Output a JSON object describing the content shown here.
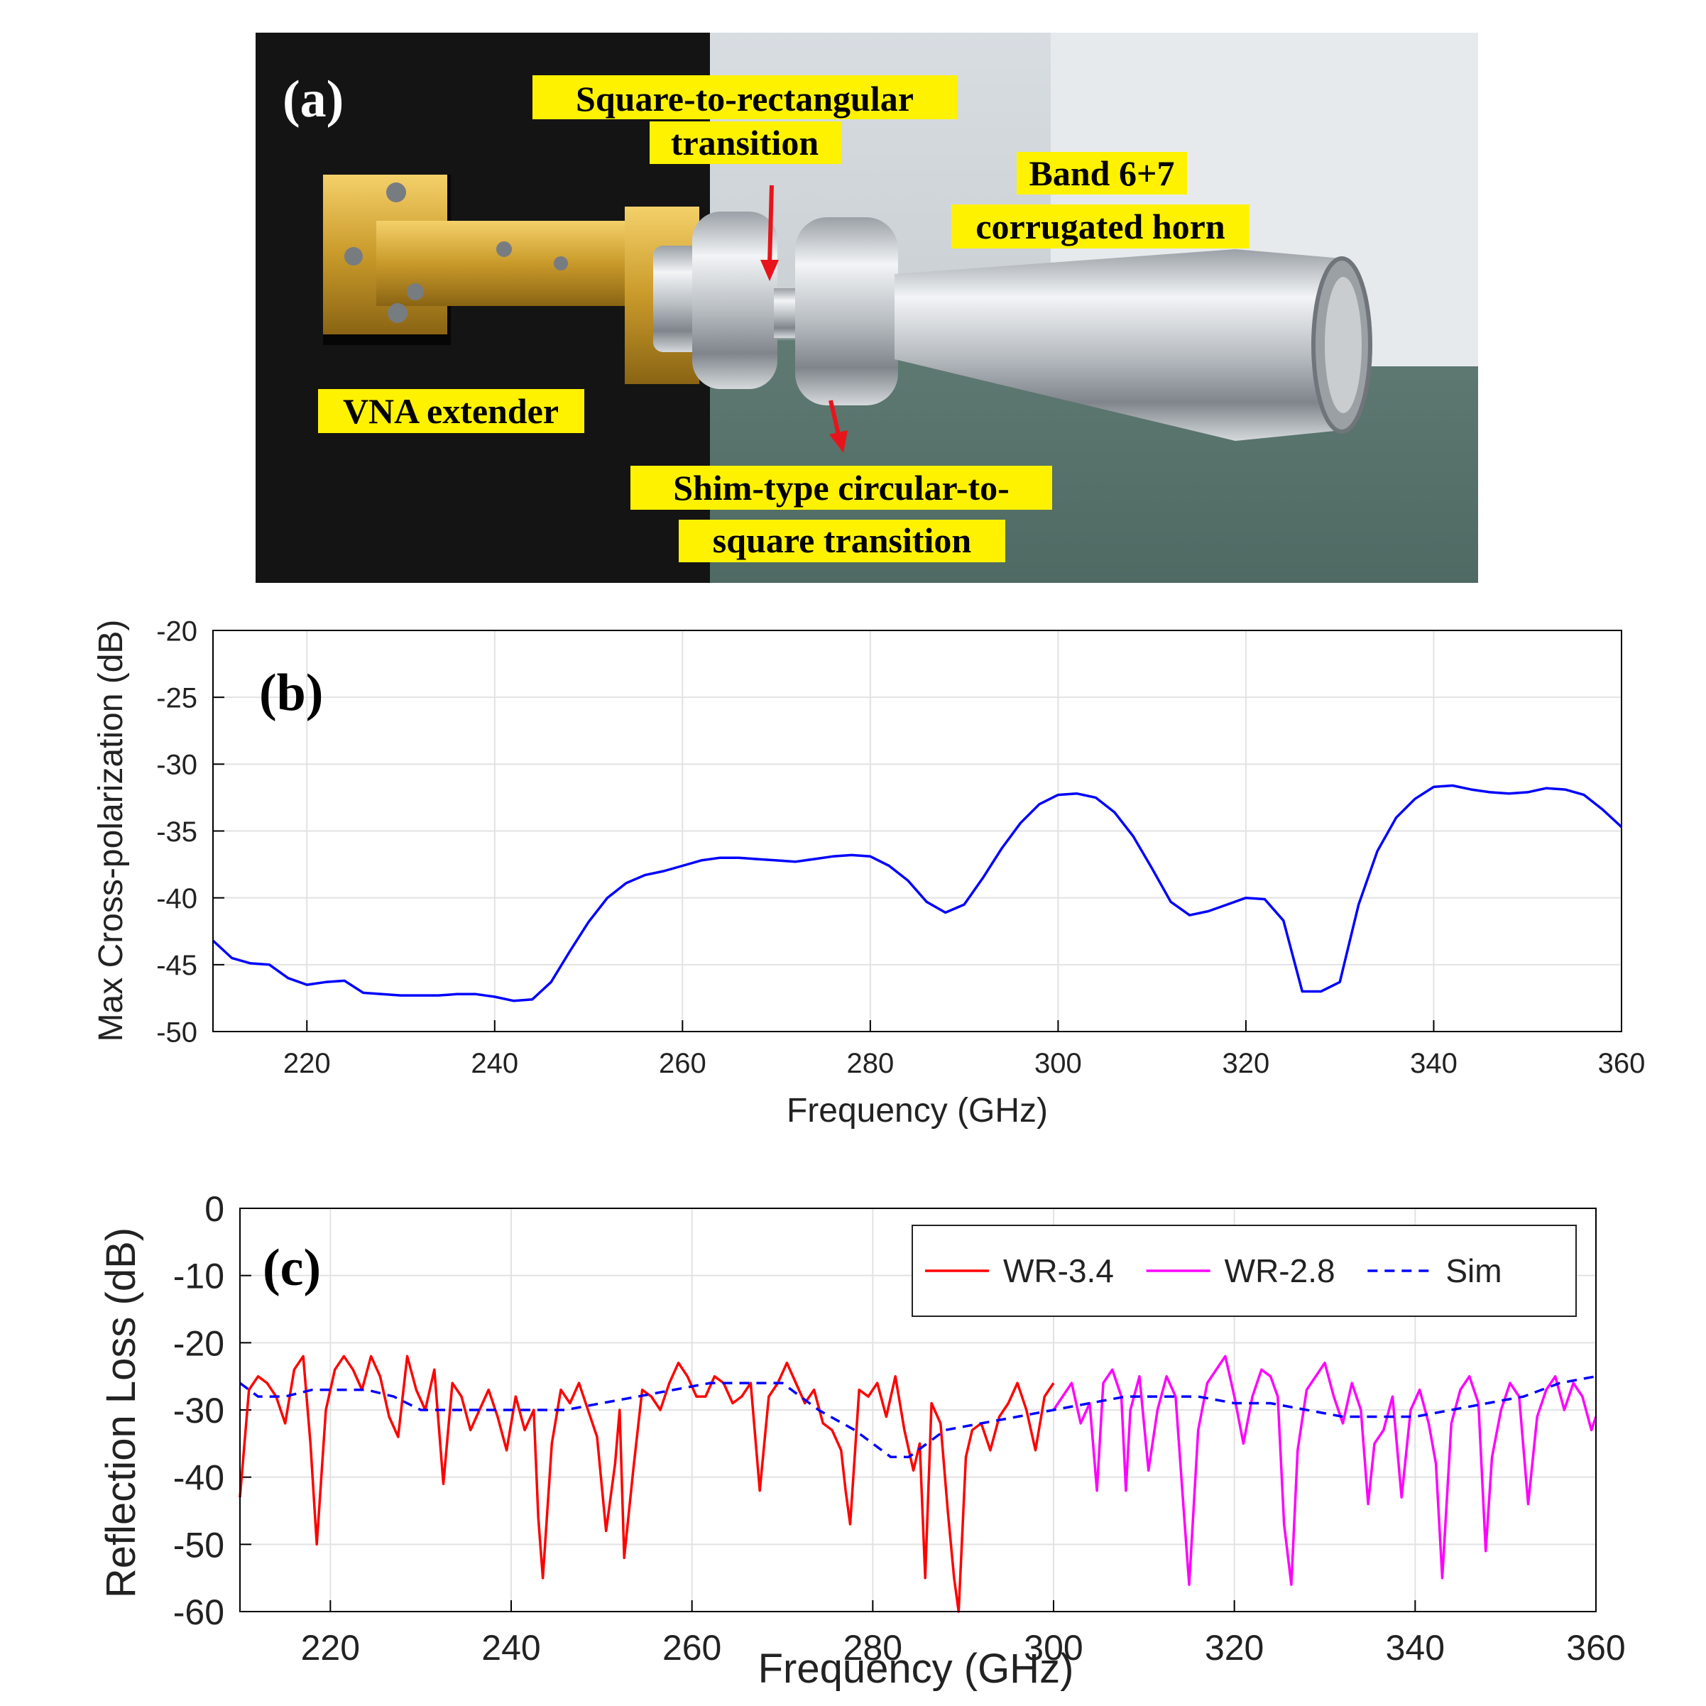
{
  "photo": {
    "panel_label": "(a)",
    "labels": {
      "square_to_rect": [
        "Square-to-rectangular",
        "transition"
      ],
      "horn": [
        "Band 6+7",
        "corrugated horn"
      ],
      "vna": [
        "VNA extender"
      ],
      "shim": [
        "Shim-type circular-to-",
        "square transition"
      ]
    },
    "colors": {
      "highlight": "#fff200",
      "arrow": "#e8141b"
    }
  },
  "chart_data": [
    {
      "panel_label": "(b)",
      "type": "line",
      "xlabel": "Frequency (GHz)",
      "ylabel": "Max Cross-polarization (dB)",
      "xlim": [
        210,
        360
      ],
      "ylim": [
        -50,
        -20
      ],
      "xticks": [
        220,
        240,
        260,
        280,
        300,
        320,
        340,
        360
      ],
      "yticks": [
        -20,
        -25,
        -30,
        -35,
        -40,
        -45,
        -50
      ],
      "grid": true,
      "series": [
        {
          "color": "#0000ff",
          "style": "solid",
          "x": [
            210,
            212,
            214,
            216,
            218,
            220,
            222,
            224,
            226,
            228,
            230,
            232,
            234,
            236,
            238,
            240,
            242,
            244,
            246,
            248,
            250,
            252,
            254,
            256,
            258,
            260,
            262,
            264,
            266,
            268,
            270,
            272,
            274,
            276,
            278,
            280,
            282,
            284,
            286,
            288,
            290,
            292,
            294,
            296,
            298,
            300,
            302,
            304,
            306,
            308,
            310,
            312,
            314,
            316,
            318,
            320,
            322,
            324,
            326,
            328,
            330,
            332,
            334,
            336,
            338,
            340,
            342,
            344,
            346,
            348,
            350,
            352,
            354,
            356,
            358,
            360
          ],
          "y": [
            -43.2,
            -44.5,
            -44.9,
            -45.0,
            -46.0,
            -46.5,
            -46.3,
            -46.2,
            -47.1,
            -47.2,
            -47.3,
            -47.3,
            -47.3,
            -47.2,
            -47.2,
            -47.4,
            -47.7,
            -47.6,
            -46.3,
            -44.0,
            -41.8,
            -40.0,
            -38.9,
            -38.3,
            -38.0,
            -37.6,
            -37.2,
            -37.0,
            -37.0,
            -37.1,
            -37.2,
            -37.3,
            -37.1,
            -36.9,
            -36.8,
            -36.9,
            -37.6,
            -38.7,
            -40.3,
            -41.1,
            -40.5,
            -38.5,
            -36.3,
            -34.4,
            -33.0,
            -32.3,
            -32.2,
            -32.5,
            -33.6,
            -35.4,
            -37.8,
            -40.3,
            -41.3,
            -41.0,
            -40.5,
            -40.0,
            -40.1,
            -41.7,
            -47.0,
            -47.0,
            -46.3,
            -40.5,
            -36.5,
            -34.0,
            -32.6,
            -31.7,
            -31.6,
            -31.9,
            -32.1,
            -32.2,
            -32.1,
            -31.8,
            -31.9,
            -32.3,
            -33.4,
            -34.7
          ]
        }
      ]
    },
    {
      "panel_label": "(c)",
      "type": "line",
      "xlabel": "Frequency (GHz)",
      "ylabel": "Reflection Loss (dB)",
      "xlim": [
        210,
        360
      ],
      "ylim": [
        -60,
        0
      ],
      "xticks": [
        220,
        240,
        260,
        280,
        300,
        320,
        340,
        360
      ],
      "yticks": [
        0,
        -10,
        -20,
        -30,
        -40,
        -50,
        -60
      ],
      "grid": true,
      "legend_position": "top-right",
      "series": [
        {
          "name": "WR-3.4",
          "color": "#ff0000",
          "style": "solid",
          "x": [
            210,
            211,
            212,
            213,
            214,
            215,
            216,
            217,
            217.8,
            218.5,
            219.5,
            220.5,
            221.5,
            222.5,
            223.5,
            224.5,
            225.5,
            226.5,
            227.5,
            228.5,
            229.5,
            230.5,
            231.5,
            232.5,
            233.5,
            234.5,
            235.5,
            236.5,
            237.5,
            238.5,
            239.5,
            240.5,
            241.5,
            242.5,
            243,
            243.5,
            244.5,
            245.5,
            246.5,
            247.5,
            248.5,
            249.5,
            250.5,
            251.5,
            252,
            252.5,
            253.5,
            254.5,
            255.5,
            256.5,
            257.5,
            258.5,
            259.5,
            260.5,
            261.5,
            262.5,
            263.5,
            264.5,
            265.5,
            266.5,
            267.5,
            268.5,
            269.5,
            270.5,
            271.5,
            272.5,
            273.5,
            274.5,
            275.5,
            276.5,
            277,
            277.5,
            278.5,
            279.5,
            280.5,
            281.5,
            282.5,
            283.5,
            284.5,
            285.2,
            285.8,
            286.5,
            287.5,
            288.3,
            289,
            289.5,
            290.3,
            291,
            292,
            293,
            294,
            295,
            296,
            297,
            298,
            299,
            300
          ],
          "y": [
            -43,
            -27,
            -25,
            -26,
            -28,
            -32,
            -24,
            -22,
            -35,
            -50,
            -30,
            -24,
            -22,
            -24,
            -27,
            -22,
            -25,
            -31,
            -34,
            -22,
            -27,
            -30,
            -24,
            -41,
            -26,
            -28,
            -33,
            -30,
            -27,
            -31,
            -36,
            -28,
            -33,
            -30,
            -46,
            -55,
            -35,
            -27,
            -29,
            -26,
            -30,
            -34,
            -48,
            -38,
            -30,
            -52,
            -39,
            -27,
            -28,
            -30,
            -26,
            -23,
            -25,
            -28,
            -28,
            -25,
            -26,
            -29,
            -28,
            -26,
            -42,
            -28,
            -26,
            -23,
            -26,
            -29,
            -27,
            -32,
            -33,
            -36,
            -42,
            -47,
            -27,
            -28,
            -26,
            -31,
            -25,
            -33,
            -39,
            -35,
            -55,
            -29,
            -32,
            -45,
            -55,
            -60,
            -37,
            -33,
            -32,
            -36,
            -31,
            -29,
            -26,
            -30,
            -36,
            -28,
            -26
          ],
          "x_note": ""
        },
        {
          "name": "WR-2.8",
          "color": "#ff00ff",
          "style": "solid",
          "x": [
            300,
            301,
            302,
            303,
            304,
            304.8,
            305.5,
            306.5,
            307.5,
            308,
            308.5,
            309.5,
            310.5,
            311.5,
            312.5,
            313.5,
            314.4,
            315,
            316,
            317,
            318,
            319,
            320,
            321,
            322,
            323,
            324,
            324.8,
            325.5,
            326.3,
            327,
            328,
            329,
            330,
            331,
            332,
            333,
            334,
            334.8,
            335.5,
            336.5,
            337.5,
            338.5,
            339.5,
            340.5,
            341.5,
            342.3,
            343,
            344,
            345,
            346,
            347,
            347.8,
            348.5,
            349.5,
            350.5,
            351.5,
            352.5,
            353.5,
            354.5,
            355.5,
            356.5,
            357.5,
            358.5,
            359.5,
            360
          ],
          "y": [
            -30,
            -28,
            -26,
            -32,
            -29,
            -42,
            -26,
            -24,
            -28,
            -42,
            -30,
            -25,
            -39,
            -30,
            -25,
            -28,
            -45,
            -56,
            -33,
            -26,
            -24,
            -22,
            -28,
            -35,
            -28,
            -24,
            -25,
            -28,
            -47,
            -56,
            -36,
            -27,
            -25,
            -23,
            -28,
            -32,
            -26,
            -30,
            -44,
            -35,
            -33,
            -28,
            -43,
            -30,
            -27,
            -32,
            -38,
            -55,
            -32,
            -27,
            -25,
            -29,
            -51,
            -37,
            -30,
            -26,
            -28,
            -44,
            -31,
            -27,
            -25,
            -30,
            -26,
            -28,
            -33,
            -31
          ]
        },
        {
          "name": "Sim",
          "color": "#0000ff",
          "style": "dashed",
          "x": [
            210,
            212,
            215,
            218,
            221,
            224,
            227,
            230,
            234,
            238,
            242,
            246,
            250,
            254,
            258,
            262,
            266,
            270,
            274,
            278,
            280,
            282,
            284,
            286,
            288,
            292,
            296,
            300,
            304,
            308,
            312,
            316,
            320,
            324,
            328,
            332,
            336,
            340,
            344,
            348,
            352,
            356,
            360
          ],
          "y": [
            -26,
            -28,
            -28,
            -27,
            -27,
            -27,
            -28,
            -30,
            -30,
            -30,
            -30,
            -30,
            -29,
            -28,
            -27,
            -26,
            -26,
            -26,
            -30,
            -33,
            -35,
            -37,
            -37,
            -35,
            -33,
            -32,
            -31,
            -30,
            -29,
            -28,
            -28,
            -28,
            -29,
            -29,
            -30,
            -31,
            -31,
            -31,
            -30,
            -29,
            -28,
            -26,
            -25
          ]
        }
      ]
    }
  ]
}
